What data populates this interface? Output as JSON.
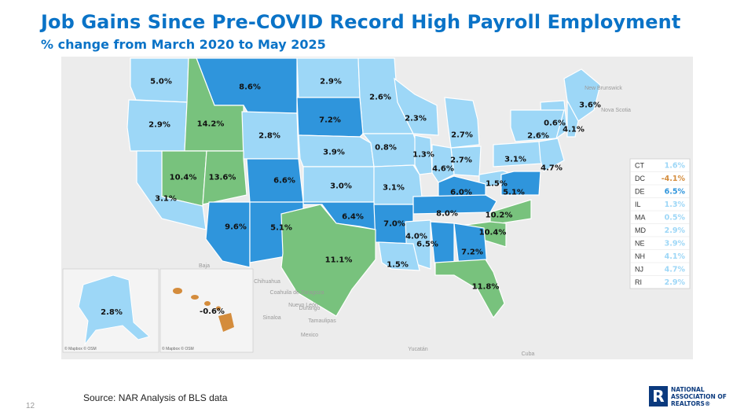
{
  "header": {
    "title": "Job Gains Since Pre-COVID Record High Payroll Employment",
    "subtitle": "% change from March 2020 to May 2025"
  },
  "colors": {
    "light_blue": "#9dd7f7",
    "dark_blue": "#2f95dc",
    "green": "#78c27d",
    "orange": "#d48c3c",
    "title_blue": "#0a73c7",
    "logo_blue": "#0b3a7e"
  },
  "map": {
    "states": [
      {
        "label": "5.0%",
        "color": "light_blue"
      },
      {
        "label": "8.6%",
        "color": "dark_blue"
      },
      {
        "label": "2.9%",
        "color": "light_blue"
      },
      {
        "label": "2.6%",
        "color": "light_blue"
      },
      {
        "label": "3.6%",
        "color": "light_blue"
      },
      {
        "label": "2.9%",
        "color": "light_blue"
      },
      {
        "label": "14.2%",
        "color": "green"
      },
      {
        "label": "7.2%",
        "color": "dark_blue"
      },
      {
        "label": "2.3%",
        "color": "light_blue"
      },
      {
        "label": "0.6%",
        "color": "light_blue"
      },
      {
        "label": "4.1%",
        "color": "light_blue"
      },
      {
        "label": "2.8%",
        "color": "light_blue"
      },
      {
        "label": "2.7%",
        "color": "light_blue"
      },
      {
        "label": "2.6%",
        "color": "light_blue"
      },
      {
        "label": "3.9%",
        "color": "light_blue"
      },
      {
        "label": "0.8%",
        "color": "light_blue"
      },
      {
        "label": "1.3%",
        "color": "light_blue"
      },
      {
        "label": "2.7%",
        "color": "light_blue"
      },
      {
        "label": "3.1%",
        "color": "light_blue"
      },
      {
        "label": "4.7%",
        "color": "light_blue"
      },
      {
        "label": "10.4%",
        "color": "green"
      },
      {
        "label": "13.6%",
        "color": "green"
      },
      {
        "label": "6.6%",
        "color": "dark_blue"
      },
      {
        "label": "4.6%",
        "color": "light_blue"
      },
      {
        "label": "3.0%",
        "color": "light_blue"
      },
      {
        "label": "3.1%",
        "color": "light_blue"
      },
      {
        "label": "1.5%",
        "color": "light_blue"
      },
      {
        "label": "6.0%",
        "color": "dark_blue"
      },
      {
        "label": "5.1%",
        "color": "dark_blue"
      },
      {
        "label": "3.1%",
        "color": "light_blue"
      },
      {
        "label": "8.0%",
        "color": "dark_blue"
      },
      {
        "label": "10.2%",
        "color": "green"
      },
      {
        "label": "6.4%",
        "color": "dark_blue"
      },
      {
        "label": "9.6%",
        "color": "dark_blue"
      },
      {
        "label": "5.1%",
        "color": "dark_blue"
      },
      {
        "label": "7.0%",
        "color": "dark_blue"
      },
      {
        "label": "10.4%",
        "color": "green"
      },
      {
        "label": "4.0%",
        "color": "light_blue"
      },
      {
        "label": "6.5%",
        "color": "dark_blue"
      },
      {
        "label": "7.2%",
        "color": "dark_blue"
      },
      {
        "label": "11.1%",
        "color": "green"
      },
      {
        "label": "1.5%",
        "color": "light_blue"
      },
      {
        "label": "11.8%",
        "color": "green"
      }
    ],
    "alaska": {
      "label": "2.8%",
      "color": "light_blue"
    },
    "hawaii": {
      "label": "-0.6%",
      "color": "orange"
    },
    "credit": "© Mapbox © OSM",
    "geo_labels": [
      "New Brunswick",
      "Nova Scotia",
      "Baja",
      "Chihuahua",
      "Coahuila de Zaragoza",
      "Nuevo León",
      "Sinaloa",
      "Durango",
      "Tamaulipas",
      "Mexico",
      "Yucatán",
      "Cuba"
    ]
  },
  "small_states": [
    {
      "abbr": "CT",
      "value": "1.6%",
      "color": "light_blue"
    },
    {
      "abbr": "DC",
      "value": "-4.1%",
      "color": "orange"
    },
    {
      "abbr": "DE",
      "value": "6.5%",
      "color": "dark_blue"
    },
    {
      "abbr": "IL",
      "value": "1.3%",
      "color": "light_blue"
    },
    {
      "abbr": "MA",
      "value": "0.5%",
      "color": "light_blue"
    },
    {
      "abbr": "MD",
      "value": "2.9%",
      "color": "light_blue"
    },
    {
      "abbr": "NE",
      "value": "3.9%",
      "color": "light_blue"
    },
    {
      "abbr": "NH",
      "value": "4.1%",
      "color": "light_blue"
    },
    {
      "abbr": "NJ",
      "value": "4.7%",
      "color": "light_blue"
    },
    {
      "abbr": "RI",
      "value": "2.9%",
      "color": "light_blue"
    }
  ],
  "footer": {
    "source": "Source: NAR Analysis of BLS data",
    "page_number": "12",
    "logo_mark": "R",
    "logo_lines": [
      "NATIONAL",
      "ASSOCIATION OF",
      "REALTORS®"
    ]
  }
}
